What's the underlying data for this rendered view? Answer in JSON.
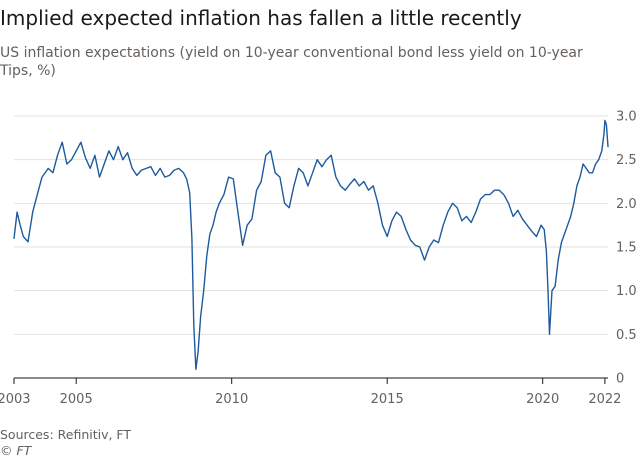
{
  "header": {
    "title": "Implied expected inflation has fallen a little recently",
    "subtitle": "US inflation expectations (yield on 10-year conventional bond less yield on 10-year Tips, %)"
  },
  "footer": {
    "source": "Sources: Refinitiv, FT",
    "credit": "© FT"
  },
  "colors": {
    "line": "#1d5a9e",
    "grid": "#e6e2dd",
    "axis": "#1a1a1a"
  },
  "chart_data": {
    "type": "line",
    "title": "Implied expected inflation has fallen a little recently",
    "ylabel": "",
    "xlabel": "",
    "y_position": "right",
    "grid": "horizontal",
    "xlim": [
      2003.0,
      2022.1
    ],
    "ylim": [
      0,
      3.0
    ],
    "x_ticks": [
      2003,
      2005,
      2010,
      2015,
      2020,
      2022
    ],
    "x_tick_labels": [
      "2003",
      "2005",
      "2010",
      "2015",
      "2020",
      "2022"
    ],
    "y_ticks": [
      0,
      0.5,
      1.0,
      1.5,
      2.0,
      2.5,
      3.0
    ],
    "y_tick_labels": [
      "0",
      "0.5",
      "1.0",
      "1.5",
      "2.0",
      "2.5",
      "3.0"
    ],
    "series": [
      {
        "name": "",
        "x": [
          2003.0,
          2003.1,
          2003.2,
          2003.3,
          2003.45,
          2003.6,
          2003.75,
          2003.9,
          2004.1,
          2004.25,
          2004.4,
          2004.55,
          2004.7,
          2004.85,
          2005.0,
          2005.15,
          2005.3,
          2005.45,
          2005.6,
          2005.75,
          2005.9,
          2006.05,
          2006.2,
          2006.35,
          2006.5,
          2006.65,
          2006.8,
          2006.95,
          2007.1,
          2007.25,
          2007.4,
          2007.55,
          2007.7,
          2007.85,
          2008.0,
          2008.15,
          2008.3,
          2008.45,
          2008.55,
          2008.65,
          2008.72,
          2008.78,
          2008.85,
          2008.92,
          2009.0,
          2009.1,
          2009.2,
          2009.3,
          2009.4,
          2009.5,
          2009.6,
          2009.75,
          2009.9,
          2010.05,
          2010.2,
          2010.35,
          2010.5,
          2010.65,
          2010.8,
          2010.95,
          2011.1,
          2011.25,
          2011.4,
          2011.55,
          2011.7,
          2011.85,
          2012.0,
          2012.15,
          2012.3,
          2012.45,
          2012.6,
          2012.75,
          2012.9,
          2013.05,
          2013.2,
          2013.35,
          2013.5,
          2013.65,
          2013.8,
          2013.95,
          2014.1,
          2014.25,
          2014.4,
          2014.55,
          2014.7,
          2014.85,
          2015.0,
          2015.15,
          2015.3,
          2015.45,
          2015.6,
          2015.75,
          2015.9,
          2016.05,
          2016.2,
          2016.35,
          2016.5,
          2016.65,
          2016.8,
          2016.95,
          2017.1,
          2017.25,
          2017.4,
          2017.55,
          2017.7,
          2017.85,
          2018.0,
          2018.15,
          2018.3,
          2018.45,
          2018.6,
          2018.75,
          2018.9,
          2019.05,
          2019.2,
          2019.35,
          2019.5,
          2019.65,
          2019.8,
          2019.95,
          2020.05,
          2020.12,
          2020.17,
          2020.22,
          2020.3,
          2020.4,
          2020.5,
          2020.6,
          2020.7,
          2020.8,
          2020.9,
          2021.0,
          2021.1,
          2021.2,
          2021.3,
          2021.4,
          2021.5,
          2021.6,
          2021.7,
          2021.8,
          2021.9,
          2021.97,
          2022.0,
          2022.05,
          2022.1
        ],
        "y": [
          1.6,
          1.9,
          1.75,
          1.62,
          1.56,
          1.9,
          2.1,
          2.3,
          2.4,
          2.35,
          2.55,
          2.7,
          2.45,
          2.5,
          2.6,
          2.7,
          2.52,
          2.4,
          2.55,
          2.3,
          2.45,
          2.6,
          2.5,
          2.65,
          2.5,
          2.58,
          2.4,
          2.32,
          2.38,
          2.4,
          2.42,
          2.32,
          2.4,
          2.3,
          2.32,
          2.38,
          2.4,
          2.35,
          2.28,
          2.12,
          1.6,
          0.6,
          0.1,
          0.3,
          0.7,
          1.0,
          1.4,
          1.65,
          1.75,
          1.9,
          2.0,
          2.1,
          2.3,
          2.28,
          1.9,
          1.52,
          1.75,
          1.82,
          2.15,
          2.25,
          2.55,
          2.6,
          2.35,
          2.3,
          2.0,
          1.95,
          2.2,
          2.4,
          2.35,
          2.2,
          2.35,
          2.5,
          2.42,
          2.5,
          2.55,
          2.3,
          2.2,
          2.15,
          2.22,
          2.28,
          2.2,
          2.25,
          2.15,
          2.2,
          2.0,
          1.75,
          1.62,
          1.8,
          1.9,
          1.85,
          1.7,
          1.58,
          1.52,
          1.5,
          1.35,
          1.5,
          1.58,
          1.55,
          1.75,
          1.9,
          2.0,
          1.95,
          1.8,
          1.85,
          1.78,
          1.9,
          2.05,
          2.1,
          2.1,
          2.15,
          2.15,
          2.1,
          2.0,
          1.85,
          1.92,
          1.82,
          1.75,
          1.68,
          1.62,
          1.75,
          1.7,
          1.45,
          1.0,
          0.5,
          1.0,
          1.05,
          1.35,
          1.55,
          1.65,
          1.75,
          1.85,
          2.0,
          2.2,
          2.3,
          2.45,
          2.4,
          2.35,
          2.35,
          2.45,
          2.5,
          2.6,
          2.8,
          2.95,
          2.9,
          2.65
        ]
      }
    ]
  }
}
